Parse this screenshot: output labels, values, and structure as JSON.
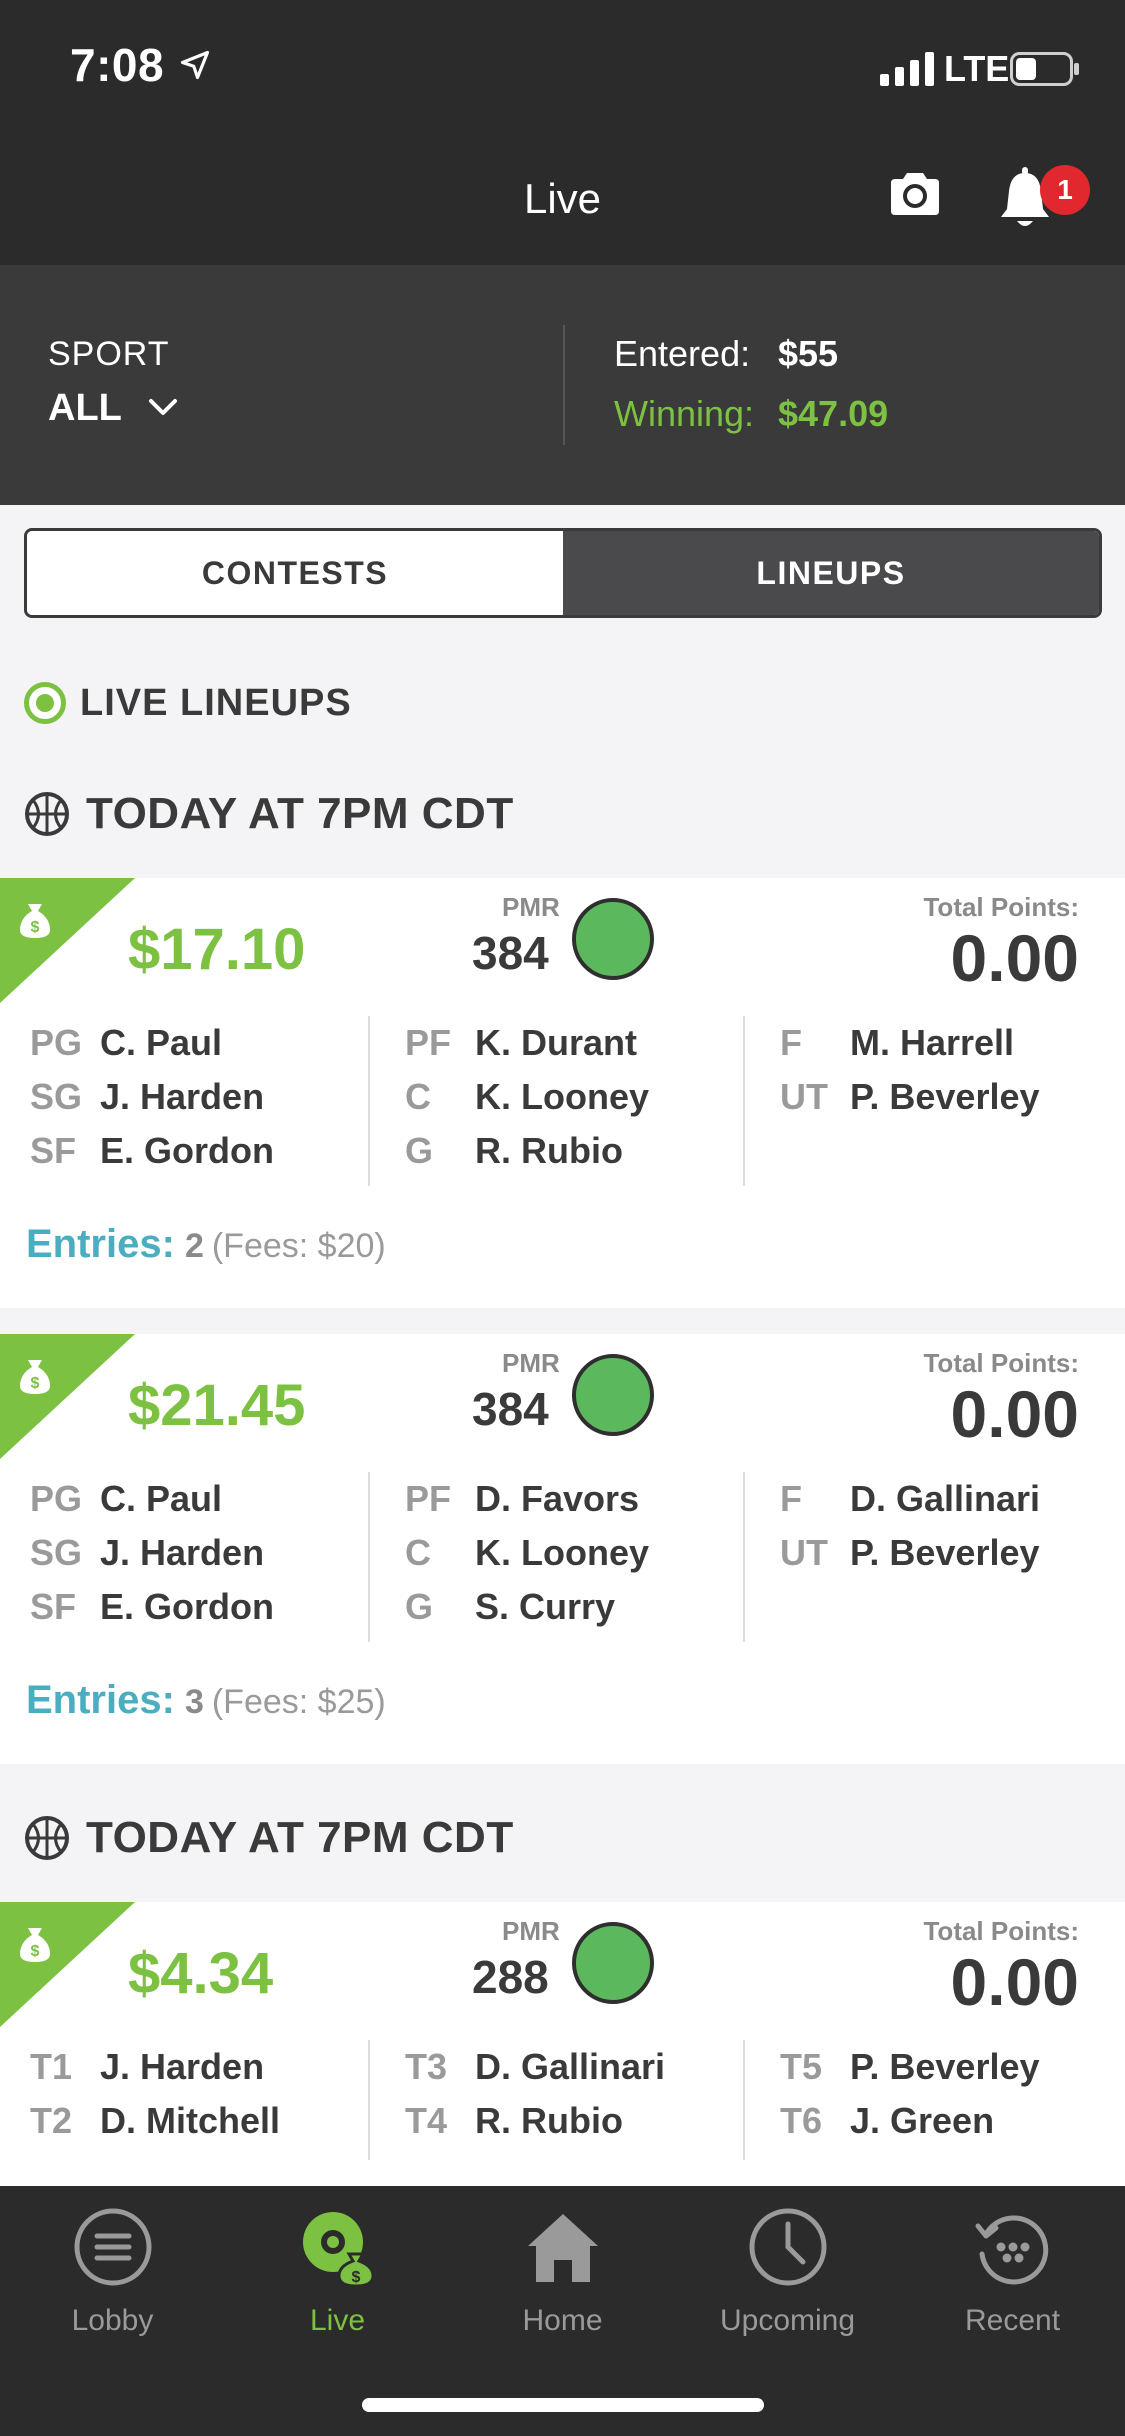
{
  "status_bar": {
    "time": "7:08",
    "network": "LTE"
  },
  "nav": {
    "title": "Live",
    "notification_count": "1"
  },
  "summary": {
    "sport_label": "SPORT",
    "sport_value": "ALL",
    "entered_label": "Entered:",
    "entered_value": "$55",
    "winning_label": "Winning:",
    "winning_value": "$47.09"
  },
  "segmented": {
    "contests": "CONTESTS",
    "lineups": "LINEUPS",
    "selected": "LINEUPS"
  },
  "live_lineups_label": "LIVE LINEUPS",
  "sections": [
    {
      "title": "TODAY AT 7PM CDT",
      "cards": [
        {
          "prize": "$17.10",
          "pmr_label": "PMR",
          "pmr": "384",
          "total_points_label": "Total Points:",
          "total_points": "0.00",
          "columns": [
            [
              {
                "pos": "PG",
                "name": "C. Paul"
              },
              {
                "pos": "SG",
                "name": "J. Harden"
              },
              {
                "pos": "SF",
                "name": "E. Gordon"
              }
            ],
            [
              {
                "pos": "PF",
                "name": "K. Durant"
              },
              {
                "pos": "C",
                "name": "K. Looney"
              },
              {
                "pos": "G",
                "name": "R. Rubio"
              }
            ],
            [
              {
                "pos": "F",
                "name": "M. Harrell"
              },
              {
                "pos": "UT",
                "name": "P. Beverley"
              }
            ]
          ],
          "entries_label": "Entries:",
          "entries_count": "2",
          "fees": "(Fees: $20)"
        },
        {
          "prize": "$21.45",
          "pmr_label": "PMR",
          "pmr": "384",
          "total_points_label": "Total Points:",
          "total_points": "0.00",
          "columns": [
            [
              {
                "pos": "PG",
                "name": "C. Paul"
              },
              {
                "pos": "SG",
                "name": "J. Harden"
              },
              {
                "pos": "SF",
                "name": "E. Gordon"
              }
            ],
            [
              {
                "pos": "PF",
                "name": "D. Favors"
              },
              {
                "pos": "C",
                "name": "K. Looney"
              },
              {
                "pos": "G",
                "name": "S. Curry"
              }
            ],
            [
              {
                "pos": "F",
                "name": "D. Gallinari"
              },
              {
                "pos": "UT",
                "name": "P. Beverley"
              }
            ]
          ],
          "entries_label": "Entries:",
          "entries_count": "3",
          "fees": "(Fees: $25)"
        }
      ]
    },
    {
      "title": "TODAY AT 7PM CDT",
      "cards": [
        {
          "prize": "$4.34",
          "pmr_label": "PMR",
          "pmr": "288",
          "total_points_label": "Total Points:",
          "total_points": "0.00",
          "columns": [
            [
              {
                "pos": "T1",
                "name": "J. Harden"
              },
              {
                "pos": "T2",
                "name": "D. Mitchell"
              }
            ],
            [
              {
                "pos": "T3",
                "name": "D. Gallinari"
              },
              {
                "pos": "T4",
                "name": "R. Rubio"
              }
            ],
            [
              {
                "pos": "T5",
                "name": "P. Beverley"
              },
              {
                "pos": "T6",
                "name": "J. Green"
              }
            ]
          ]
        }
      ]
    }
  ],
  "tabs": [
    {
      "label": "Lobby",
      "icon": "list-icon",
      "active": false
    },
    {
      "label": "Live",
      "icon": "live-icon",
      "active": true
    },
    {
      "label": "Home",
      "icon": "home-icon",
      "active": false
    },
    {
      "label": "Upcoming",
      "icon": "clock-icon",
      "active": false
    },
    {
      "label": "Recent",
      "icon": "history-icon",
      "active": false
    }
  ],
  "colors": {
    "accent_green": "#7cc142",
    "entries_teal": "#4aaec0",
    "badge_red": "#e0282e",
    "dark_bg": "#2b2b2b"
  }
}
